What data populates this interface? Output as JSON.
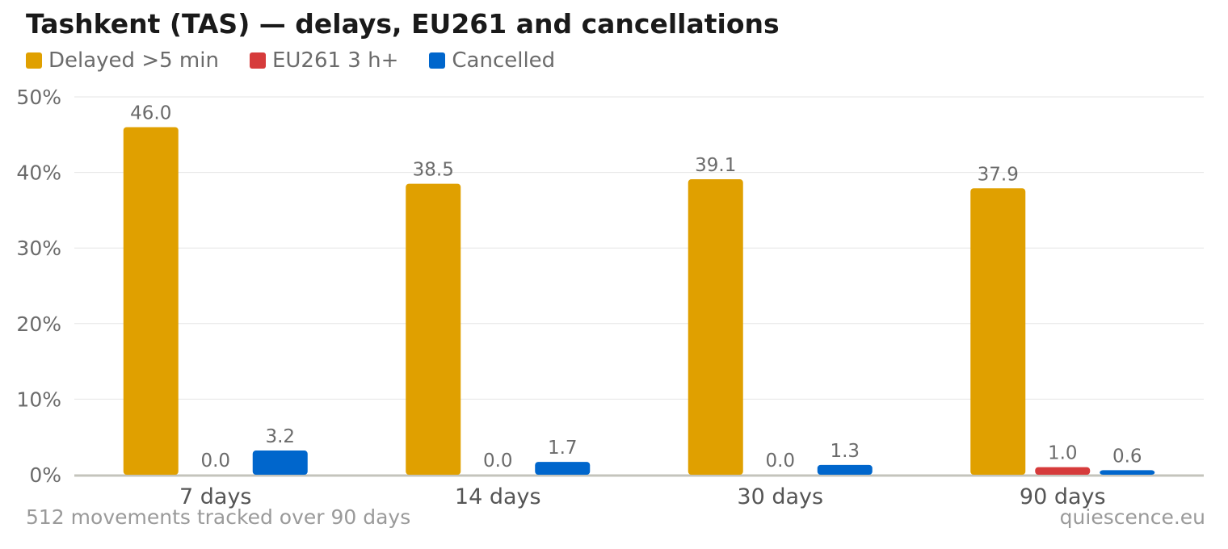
{
  "title": "Tashkent (TAS) — delays, EU261 and cancellations",
  "footer": {
    "left": "512 movements tracked over 90 days",
    "right": "quiescence.eu"
  },
  "chart_data": {
    "type": "bar",
    "title": "Tashkent (TAS) — delays, EU261 and cancellations",
    "categories": [
      "7 days",
      "14 days",
      "30 days",
      "90 days"
    ],
    "series": [
      {
        "name": "Delayed >5 min",
        "color": "#E0A000",
        "values": [
          46.0,
          38.5,
          39.1,
          37.9
        ]
      },
      {
        "name": "EU261 3 h+",
        "color": "#D63B3B",
        "values": [
          0.0,
          0.0,
          0.0,
          1.0
        ]
      },
      {
        "name": "Cancelled",
        "color": "#0066CC",
        "values": [
          3.2,
          1.7,
          1.3,
          0.6
        ]
      }
    ],
    "yticks": [
      "0%",
      "10%",
      "20%",
      "30%",
      "40%",
      "50%"
    ],
    "ylim": [
      0,
      50
    ],
    "xlabel": "",
    "ylabel": "",
    "grid": true,
    "legend": "top-left"
  }
}
